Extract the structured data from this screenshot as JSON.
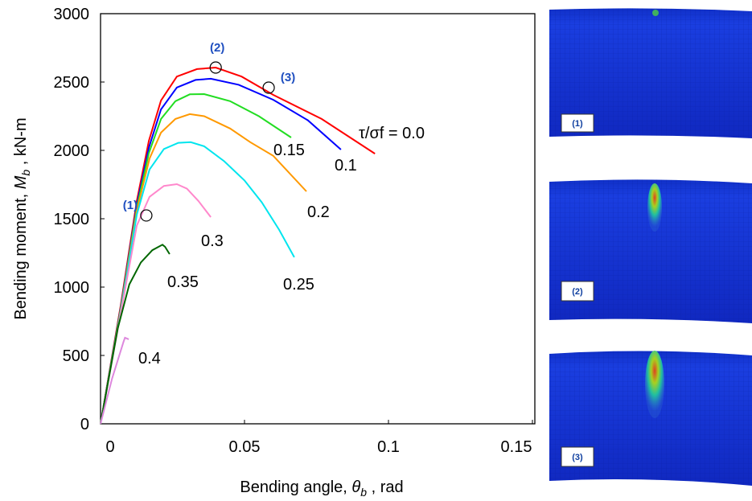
{
  "chart_data": {
    "type": "line",
    "x_label": {
      "prefix": "Bending angle, ",
      "symbol": "θ",
      "subscript": "b",
      "suffix": " , rad"
    },
    "y_label": {
      "prefix": "Bending moment, ",
      "symbol": "M",
      "subscript": "b",
      "suffix": " , kN-m"
    },
    "xlim": [
      0,
      0.15
    ],
    "ylim": [
      0,
      3000
    ],
    "xticks": [
      0,
      0.05,
      0.1,
      0.15
    ],
    "yticks": [
      0,
      500,
      1000,
      1500,
      2000,
      2500,
      3000
    ],
    "grid": false,
    "series": [
      {
        "name": "τ/σf = 0.0",
        "color": "#ff0000",
        "x": [
          0,
          0.007,
          0.0126,
          0.0168,
          0.021,
          0.0265,
          0.0335,
          0.04,
          0.049,
          0.06,
          0.0768,
          0.0953
        ],
        "values": [
          0,
          865,
          1630,
          2070,
          2365,
          2540,
          2595,
          2606,
          2540,
          2406,
          2230,
          1976
        ]
      },
      {
        "name": "0.1",
        "color": "#0000ff",
        "x": [
          0,
          0.007,
          0.0126,
          0.0168,
          0.021,
          0.0265,
          0.033,
          0.0383,
          0.048,
          0.06,
          0.072,
          0.0835
        ],
        "values": [
          0,
          850,
          1600,
          2020,
          2300,
          2460,
          2515,
          2524,
          2480,
          2370,
          2220,
          2006
        ]
      },
      {
        "name": "0.15",
        "color": "#22dd22",
        "x": [
          0,
          0.007,
          0.0126,
          0.0168,
          0.021,
          0.026,
          0.031,
          0.036,
          0.045,
          0.055,
          0.0662
        ],
        "values": [
          0,
          840,
          1580,
          1980,
          2230,
          2360,
          2410,
          2412,
          2360,
          2250,
          2094
        ]
      },
      {
        "name": "0.2",
        "color": "#ff9900",
        "x": [
          0,
          0.007,
          0.0126,
          0.017,
          0.021,
          0.026,
          0.031,
          0.036,
          0.045,
          0.052,
          0.06,
          0.0715
        ],
        "values": [
          0,
          830,
          1560,
          1940,
          2130,
          2230,
          2265,
          2250,
          2160,
          2060,
          1960,
          1700
        ]
      },
      {
        "name": "0.25",
        "color": "#00e5ee",
        "x": [
          0,
          0.007,
          0.0126,
          0.017,
          0.022,
          0.027,
          0.0313,
          0.036,
          0.043,
          0.05,
          0.056,
          0.062,
          0.0673
        ],
        "values": [
          0,
          820,
          1530,
          1860,
          2010,
          2055,
          2060,
          2030,
          1920,
          1780,
          1620,
          1420,
          1218
        ]
      },
      {
        "name": "0.3",
        "color": "#ff88cc",
        "x": [
          0,
          0.007,
          0.0126,
          0.017,
          0.022,
          0.0265,
          0.03,
          0.034,
          0.0383
        ],
        "values": [
          0,
          810,
          1450,
          1660,
          1740,
          1753,
          1720,
          1630,
          1512
        ]
      },
      {
        "name": "0.35",
        "color": "#006600",
        "x": [
          0,
          0.006,
          0.01,
          0.014,
          0.018,
          0.0215,
          0.0224,
          0.024
        ],
        "values": [
          0,
          700,
          1020,
          1180,
          1270,
          1310,
          1295,
          1241
        ]
      },
      {
        "name": "0.4",
        "color": "#dd88dd",
        "x": [
          0,
          0.004,
          0.008,
          0.0085,
          0.0098
        ],
        "values": [
          0,
          330,
          600,
          630,
          618
        ]
      }
    ],
    "markers": [
      {
        "label": "(1)",
        "x": 0.0159,
        "y": 1524
      },
      {
        "label": "(2)",
        "x": 0.04,
        "y": 2606
      },
      {
        "label": "(3)",
        "x": 0.0584,
        "y": 2459
      }
    ]
  },
  "panels": [
    {
      "label": "(1)"
    },
    {
      "label": "(2)"
    },
    {
      "label": "(3)"
    }
  ]
}
